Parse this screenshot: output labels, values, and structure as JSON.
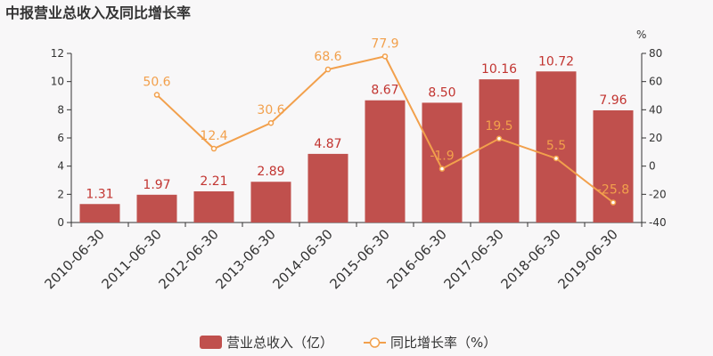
{
  "chart_data": {
    "type": "bar",
    "title": "中报营业总收入及同比增长率",
    "categories": [
      "2010-06-30",
      "2011-06-30",
      "2012-06-30",
      "2013-06-30",
      "2014-06-30",
      "2015-06-30",
      "2016-06-30",
      "2017-06-30",
      "2018-06-30",
      "2019-06-30"
    ],
    "series": [
      {
        "name": "营业总收入（亿）",
        "type": "bar",
        "axis": "left",
        "color": "#c0504d",
        "values": [
          1.31,
          1.97,
          2.21,
          2.89,
          4.87,
          8.67,
          8.5,
          10.16,
          10.72,
          7.96
        ],
        "labels": [
          "1.31",
          "1.97",
          "2.21",
          "2.89",
          "4.87",
          "8.67",
          "8.50",
          "10.16",
          "10.72",
          "7.96"
        ]
      },
      {
        "name": "同比增长率（%）",
        "type": "line",
        "axis": "right",
        "color": "#f2a04c",
        "values": [
          null,
          50.6,
          12.4,
          30.6,
          68.6,
          77.9,
          -1.9,
          19.5,
          5.5,
          -25.8
        ],
        "labels": [
          "",
          "50.6",
          "12.4",
          "30.6",
          "68.6",
          "77.9",
          "-1.9",
          "19.5",
          "5.5",
          "-25.8"
        ]
      }
    ],
    "y_left": {
      "min": 0,
      "max": 12,
      "ticks": [
        "0",
        "2",
        "4",
        "6",
        "8",
        "10",
        "12"
      ]
    },
    "y_right": {
      "min": -40,
      "max": 80,
      "unit": "%",
      "ticks": [
        "-40",
        "-20",
        "0",
        "20",
        "40",
        "60",
        "80"
      ]
    },
    "legend": {
      "placement": "bottom-center"
    },
    "grid": false
  }
}
